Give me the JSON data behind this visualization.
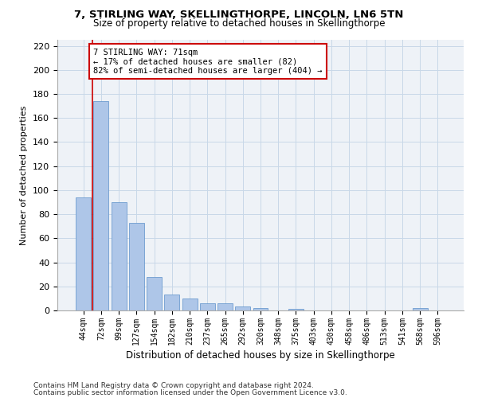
{
  "title1": "7, STIRLING WAY, SKELLINGTHORPE, LINCOLN, LN6 5TN",
  "title2": "Size of property relative to detached houses in Skellingthorpe",
  "xlabel": "Distribution of detached houses by size in Skellingthorpe",
  "ylabel": "Number of detached properties",
  "categories": [
    "44sqm",
    "72sqm",
    "99sqm",
    "127sqm",
    "154sqm",
    "182sqm",
    "210sqm",
    "237sqm",
    "265sqm",
    "292sqm",
    "320sqm",
    "348sqm",
    "375sqm",
    "403sqm",
    "430sqm",
    "458sqm",
    "486sqm",
    "513sqm",
    "541sqm",
    "568sqm",
    "596sqm"
  ],
  "values": [
    94,
    174,
    90,
    73,
    28,
    13,
    10,
    6,
    6,
    3,
    2,
    0,
    1,
    0,
    0,
    0,
    0,
    0,
    0,
    2,
    0
  ],
  "bar_color": "#aec6e8",
  "bar_edge_color": "#5b8fc9",
  "grid_color": "#c8d8e8",
  "background_color": "#eef2f7",
  "annotation_line1": "7 STIRLING WAY: 71sqm",
  "annotation_line2": "← 17% of detached houses are smaller (82)",
  "annotation_line3": "82% of semi-detached houses are larger (404) →",
  "annotation_box_color": "#ffffff",
  "annotation_box_edge_color": "#cc0000",
  "vline_color": "#cc0000",
  "footnote1": "Contains HM Land Registry data © Crown copyright and database right 2024.",
  "footnote2": "Contains public sector information licensed under the Open Government Licence v3.0.",
  "ylim": [
    0,
    225
  ],
  "yticks": [
    0,
    20,
    40,
    60,
    80,
    100,
    120,
    140,
    160,
    180,
    200,
    220
  ]
}
